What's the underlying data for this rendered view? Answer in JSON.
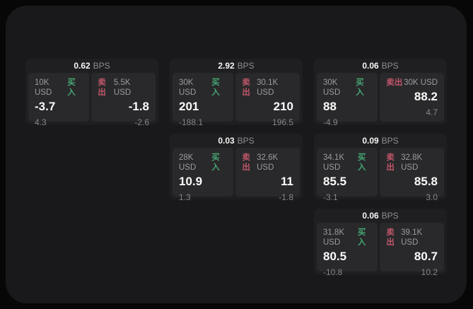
{
  "ui": {
    "bps_unit": "BPS",
    "buy_label": "买入",
    "sell_label": "卖出"
  },
  "colors": {
    "buy_green": "#46a673",
    "sell_red": "#c0566a",
    "frame_bg": "#19191b",
    "card_bg": "#1f1f21",
    "panel_bg": "#29292b"
  },
  "cards": [
    {
      "bps": "0.62",
      "row": 0,
      "col": 0,
      "buy": {
        "volume": "10K USD",
        "price": "-3.7",
        "change": "4.3"
      },
      "sell": {
        "volume": "5.5K USD",
        "price": "-1.8",
        "change": "-2.6"
      }
    },
    {
      "bps": "2.92",
      "row": 0,
      "col": 1,
      "buy": {
        "volume": "30K USD",
        "price": "201",
        "change": "-188.1"
      },
      "sell": {
        "volume": "30.1K USD",
        "price": "210",
        "change": "196.5"
      }
    },
    {
      "bps": "0.06",
      "row": 0,
      "col": 2,
      "buy": {
        "volume": "30K USD",
        "price": "88",
        "change": "-4.9"
      },
      "sell": {
        "volume": "30K USD",
        "price": "88.2",
        "change": "4.7"
      }
    },
    {
      "bps": "0.03",
      "row": 1,
      "col": 1,
      "buy": {
        "volume": "28K USD",
        "price": "10.9",
        "change": "1.3"
      },
      "sell": {
        "volume": "32.6K USD",
        "price": "11",
        "change": "-1.8"
      }
    },
    {
      "bps": "0.09",
      "row": 1,
      "col": 2,
      "buy": {
        "volume": "34.1K USD",
        "price": "85.5",
        "change": "-3.1"
      },
      "sell": {
        "volume": "32.8K USD",
        "price": "85.8",
        "change": "3.0"
      }
    },
    {
      "bps": "0.06",
      "row": 2,
      "col": 2,
      "buy": {
        "volume": "31.8K USD",
        "price": "80.5",
        "change": "-10.8"
      },
      "sell": {
        "volume": "39.1K USD",
        "price": "80.7",
        "change": "10.2"
      }
    }
  ]
}
